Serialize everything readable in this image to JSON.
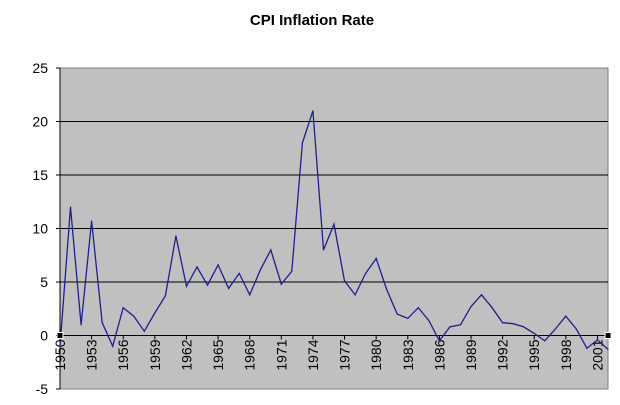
{
  "chart_data": {
    "type": "line",
    "title": "CPI Inflation Rate",
    "xlabel": "",
    "ylabel": "",
    "ylim": [
      -5,
      25
    ],
    "yticks": [
      -5,
      0,
      5,
      10,
      15,
      20,
      25
    ],
    "xticks": [
      1950,
      1953,
      1956,
      1959,
      1962,
      1965,
      1968,
      1971,
      1974,
      1977,
      1980,
      1983,
      1986,
      1989,
      1992,
      1995,
      1998,
      2001
    ],
    "xlim": [
      1950,
      2002
    ],
    "grid": true,
    "legend": "none",
    "colors": {
      "line": "#1f1f8f",
      "plot_bg": "#c0c0c0",
      "grid": "#000000"
    },
    "series": [
      {
        "x": [
          1950,
          1951,
          1952,
          1953,
          1954,
          1955,
          1956,
          1957,
          1958,
          1959,
          1960,
          1961,
          1962,
          1963,
          1964,
          1965,
          1966,
          1967,
          1968,
          1969,
          1970,
          1971,
          1972,
          1973,
          1974,
          1975,
          1976,
          1977,
          1978,
          1979,
          1980,
          1981,
          1982,
          1983,
          1984,
          1985,
          1986,
          1987,
          1988,
          1989,
          1990,
          1991,
          1992,
          1993,
          1994,
          1995,
          1996,
          1997,
          1998,
          1999,
          2000,
          2001,
          2002
        ],
        "values": [
          -1.0,
          12.0,
          1.0,
          10.7,
          1.2,
          -1.0,
          2.6,
          1.8,
          0.4,
          2.1,
          3.7,
          9.3,
          4.6,
          6.4,
          4.7,
          6.6,
          4.4,
          5.8,
          3.8,
          6.1,
          8.0,
          4.8,
          6.0,
          18.0,
          21.0,
          8.0,
          10.4,
          5.1,
          3.8,
          5.8,
          7.2,
          4.3,
          2.0,
          1.6,
          2.6,
          1.4,
          -0.5,
          0.8,
          1.0,
          2.7,
          3.8,
          2.6,
          1.2,
          1.1,
          0.8,
          0.2,
          -0.5,
          0.6,
          1.8,
          0.6,
          -1.2,
          -0.4,
          -1.3
        ]
      }
    ]
  }
}
